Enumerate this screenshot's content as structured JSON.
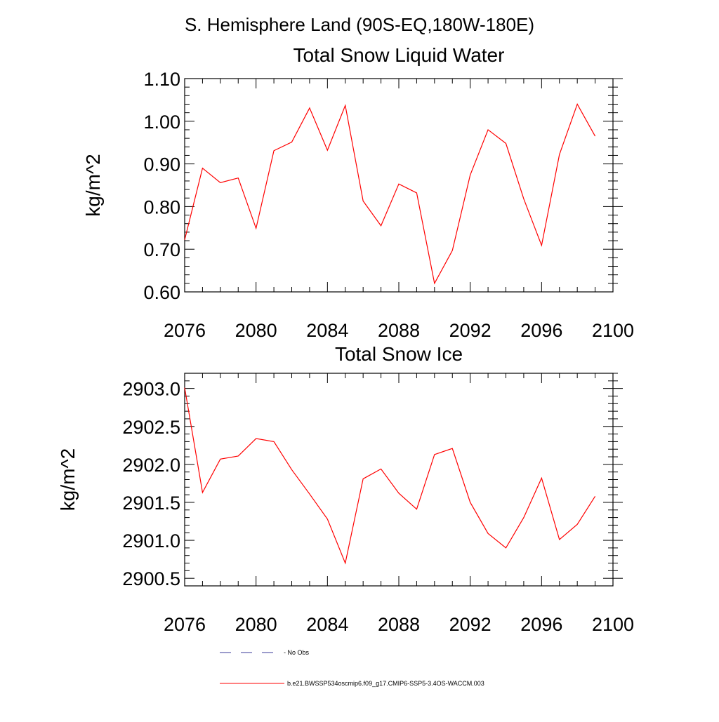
{
  "page": {
    "main_title": "S. Hemisphere Land (90S-EQ,180W-180E)"
  },
  "colors": {
    "series": "#ff0000",
    "obs": "#3a3a9a",
    "axis": "#000000"
  },
  "chart_data": [
    {
      "type": "line",
      "title": "Total Snow Liquid Water",
      "xlabel": "",
      "ylabel": "kg/m^2",
      "xlim": [
        2076,
        2100
      ],
      "ylim": [
        0.6,
        1.1
      ],
      "xticks": [
        2076,
        2080,
        2084,
        2088,
        2092,
        2096,
        2100
      ],
      "xtick_labels": [
        "2076",
        "2080",
        "2084",
        "2088",
        "2092",
        "2096",
        "2100"
      ],
      "yticks": [
        0.6,
        0.7,
        0.8,
        0.9,
        1.0,
        1.1
      ],
      "ytick_labels": [
        "0.60",
        "0.70",
        "0.80",
        "0.90",
        "1.00",
        "1.10"
      ],
      "grid": false,
      "x": [
        2076,
        2077,
        2078,
        2079,
        2080,
        2081,
        2082,
        2083,
        2084,
        2085,
        2086,
        2087,
        2088,
        2089,
        2090,
        2091,
        2092,
        2093,
        2094,
        2095,
        2096,
        2097,
        2098,
        2099
      ],
      "series": [
        {
          "name": "b.e21.BWSSP534oscmip6.f09_g17.CMIP6-SSP5-3.4OS-WACCM.003",
          "values": [
            0.722,
            0.89,
            0.856,
            0.867,
            0.749,
            0.931,
            0.951,
            1.031,
            0.932,
            1.037,
            0.813,
            0.755,
            0.853,
            0.832,
            0.62,
            0.697,
            0.874,
            0.98,
            0.948,
            0.818,
            0.709,
            0.922,
            1.04,
            0.965
          ]
        }
      ]
    },
    {
      "type": "line",
      "title": "Total Snow Ice",
      "xlabel": "",
      "ylabel": "kg/m^2",
      "xlim": [
        2076,
        2100
      ],
      "ylim": [
        2900.4,
        2903.2
      ],
      "xticks": [
        2076,
        2080,
        2084,
        2088,
        2092,
        2096,
        2100
      ],
      "xtick_labels": [
        "2076",
        "2080",
        "2084",
        "2088",
        "2092",
        "2096",
        "2100"
      ],
      "yticks": [
        2900.5,
        2901.0,
        2901.5,
        2902.0,
        2902.5,
        2903.0
      ],
      "ytick_labels": [
        "2900.5",
        "2901.0",
        "2901.5",
        "2902.0",
        "2902.5",
        "2903.0"
      ],
      "grid": false,
      "x": [
        2076,
        2077,
        2078,
        2079,
        2080,
        2081,
        2082,
        2083,
        2084,
        2085,
        2086,
        2087,
        2088,
        2089,
        2090,
        2091,
        2092,
        2093,
        2094,
        2095,
        2096,
        2097,
        2098,
        2099
      ],
      "series": [
        {
          "name": "b.e21.BWSSP534oscmip6.f09_g17.CMIP6-SSP5-3.4OS-WACCM.003",
          "values": [
            2903.01,
            2901.63,
            2902.07,
            2902.11,
            2902.34,
            2902.3,
            2901.93,
            2901.61,
            2901.28,
            2900.7,
            2901.81,
            2901.94,
            2901.62,
            2901.41,
            2902.13,
            2902.21,
            2901.5,
            2901.09,
            2900.9,
            2901.3,
            2901.82,
            2901.01,
            2901.21,
            2901.58
          ]
        }
      ]
    }
  ],
  "legend": {
    "items": [
      {
        "label": "No Obs",
        "style": "dashed"
      },
      {
        "label": "b.e21.BWSSP534oscmip6.f09_g17.CMIP6-SSP5-3.4OS-WACCM.003",
        "style": "solid"
      }
    ]
  }
}
